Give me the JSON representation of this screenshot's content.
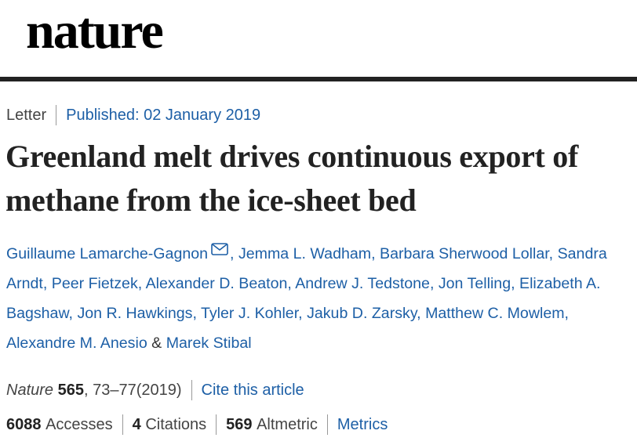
{
  "header": {
    "logo": "nature"
  },
  "article": {
    "type": "Letter",
    "published": "Published: 02 January 2019",
    "title": "Greenland melt drives continuous export of methane from the ice-sheet bed",
    "authors": [
      "Guillaume Lamarche-Gagnon",
      "Jemma L. Wadham",
      "Barbara Sherwood Lollar",
      "Sandra Arndt",
      "Peer Fietzek",
      "Alexander D. Beaton",
      "Andrew J. Tedstone",
      "Jon Telling",
      "Elizabeth A. Bagshaw",
      "Jon R. Hawkings",
      "Tyler J. Kohler",
      "Jakub D. Zarsky",
      "Matthew C. Mowlem",
      "Alexandre M. Anesio",
      "Marek Stibal"
    ],
    "author_separator": ",",
    "author_final": "&",
    "citation": {
      "journal": "Nature",
      "volume": "565",
      "details": ", 73–77(2019)",
      "cite_link": "Cite this article"
    },
    "metrics": {
      "accesses": {
        "count": "6088",
        "label": "Accesses"
      },
      "citations": {
        "count": "4",
        "label": "Citations"
      },
      "altmetric": {
        "count": "569",
        "label": "Altmetric"
      },
      "link": "Metrics"
    }
  }
}
